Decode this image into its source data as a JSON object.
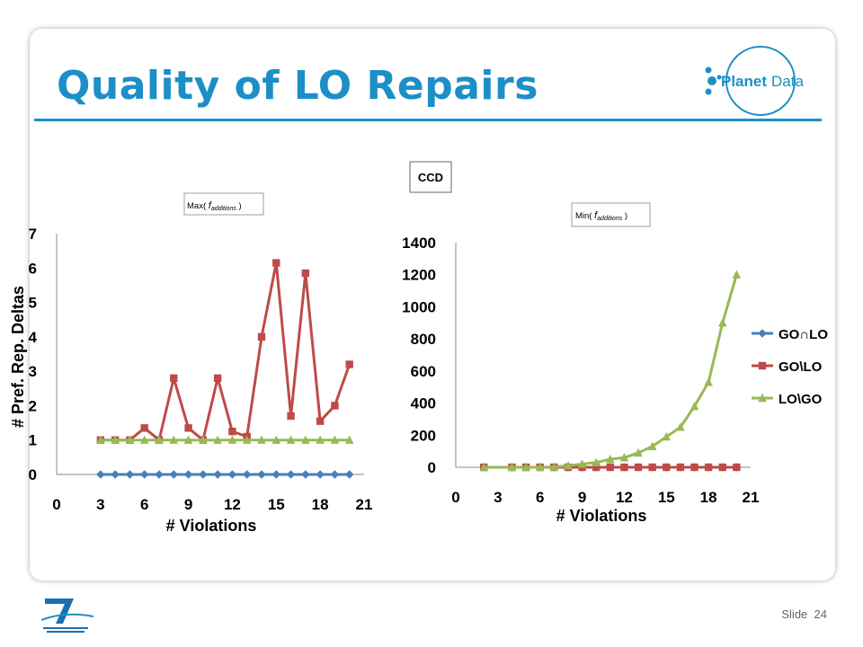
{
  "slide": {
    "title": "Quality of LO Repairs",
    "slide_label": "Slide",
    "slide_number": "24",
    "logo_text_a": "Planet",
    "logo_text_b": "Data",
    "accent": "#1c8fc7"
  },
  "chart_data": [
    {
      "type": "line",
      "title": "Max( f additions )",
      "title_main": "Max( ",
      "title_f": "f",
      "title_sub": "additions",
      "title_close": " )",
      "xlabel": "# Violations",
      "ylabel": "# Pref. Rep. Deltas",
      "xlim": [
        0,
        21
      ],
      "ylim": [
        0,
        7
      ],
      "xticks": [
        "0",
        "3",
        "6",
        "9",
        "12",
        "15",
        "18",
        "21"
      ],
      "yticks": [
        "0",
        "1",
        "2",
        "3",
        "4",
        "5",
        "6",
        "7"
      ],
      "grid": false,
      "legend": "none",
      "x": [
        3,
        4,
        5,
        6,
        7,
        8,
        9,
        10,
        11,
        12,
        13,
        14,
        15,
        16,
        17,
        18,
        19,
        20
      ],
      "series": [
        {
          "name": "GO∩LO",
          "color": "#4a7ebb",
          "marker": "diamond",
          "values": [
            0,
            0,
            0,
            0,
            0,
            0,
            0,
            0,
            0,
            0,
            0,
            0,
            0,
            0,
            0,
            0,
            0,
            0
          ]
        },
        {
          "name": "GO\\LO",
          "color": "#be4b48",
          "marker": "square",
          "values": [
            1,
            1,
            1,
            1.35,
            1,
            2.8,
            1.35,
            1,
            2.8,
            1.25,
            1.1,
            4,
            6.15,
            1.7,
            5.85,
            1.55,
            2,
            3.2
          ]
        },
        {
          "name": "LO\\GO",
          "color": "#98b954",
          "marker": "triangle",
          "values": [
            1,
            1,
            1,
            1,
            1,
            1,
            1,
            1,
            1,
            1,
            1,
            1,
            1,
            1,
            1,
            1,
            1,
            1
          ]
        }
      ]
    },
    {
      "type": "line",
      "title": "Min( f additions )",
      "title_main": "Min( ",
      "title_f": "f",
      "title_sub": "additions",
      "title_close": " )",
      "header_box": "CCD",
      "xlabel": "# Violations",
      "ylabel": "",
      "xlim": [
        0,
        21
      ],
      "ylim": [
        0,
        1400
      ],
      "xticks": [
        "0",
        "3",
        "6",
        "9",
        "12",
        "15",
        "18",
        "21"
      ],
      "yticks": [
        "0",
        "200",
        "400",
        "600",
        "800",
        "1000",
        "1200",
        "1400"
      ],
      "grid": false,
      "legend": "right",
      "x": [
        2,
        4,
        5,
        6,
        7,
        8,
        9,
        10,
        11,
        12,
        13,
        14,
        15,
        16,
        17,
        18,
        19,
        20
      ],
      "series": [
        {
          "name": "GO∩LO",
          "color": "#4a7ebb",
          "marker": "diamond",
          "values": [
            0,
            0,
            0,
            0,
            0,
            0,
            0,
            0,
            0,
            0,
            0,
            0,
            0,
            0,
            0,
            0,
            0,
            0
          ]
        },
        {
          "name": "GO\\LO",
          "color": "#be4b48",
          "marker": "square",
          "values": [
            0,
            0,
            0,
            0,
            0,
            0,
            0,
            0,
            0,
            0,
            0,
            0,
            0,
            0,
            0,
            0,
            0,
            0
          ]
        },
        {
          "name": "LO\\GO",
          "color": "#98b954",
          "marker": "triangle",
          "values": [
            0,
            0,
            0,
            0,
            2,
            10,
            20,
            30,
            50,
            60,
            90,
            130,
            190,
            250,
            380,
            530,
            900,
            1200
          ]
        }
      ]
    }
  ]
}
